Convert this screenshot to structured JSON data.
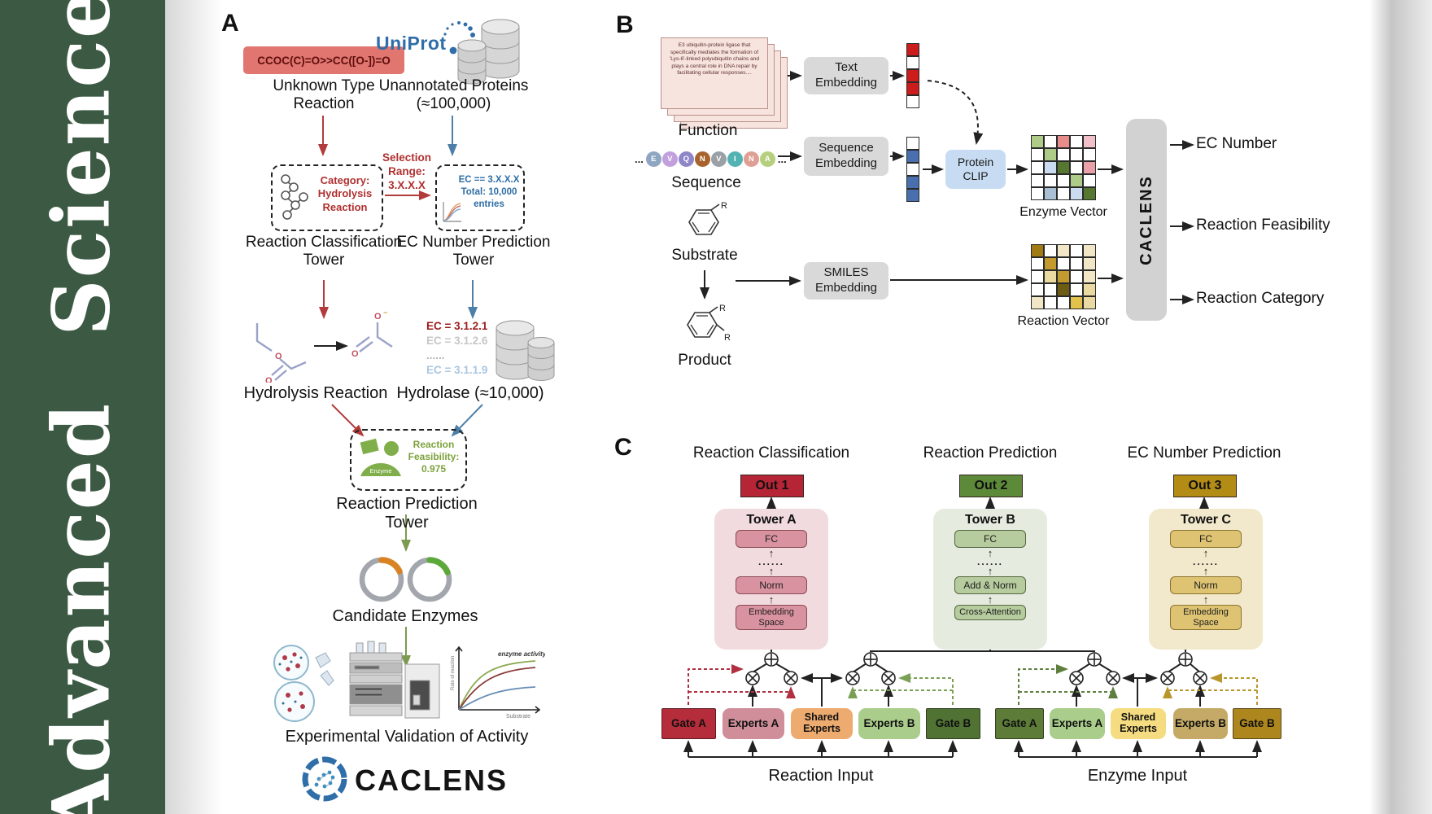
{
  "sidebar": {
    "title": "Advanced Science",
    "bg": "#3c5a43"
  },
  "panelA": {
    "label": "A",
    "smiles": "CCOC(C)=O>>CC([O-])=O",
    "unknown_reaction": "Unknown Type Reaction",
    "uniprot": "UniProt",
    "unannotated": "Unannotated Proteins (≈100,000)",
    "selection_lines": [
      "Selection",
      "Range:",
      "3.X.X.X"
    ],
    "category_lines": [
      "Category:",
      "Hydrolysis",
      "Reaction"
    ],
    "ec_box_lines": [
      "EC == 3.X.X.X",
      "Total: 10,000",
      "entries"
    ],
    "tower1": "Reaction Classification Tower",
    "tower2": "EC Number Prediction Tower",
    "hydrolysis_label": "Hydrolysis Reaction",
    "ec_list": [
      {
        "text": "EC = 3.1.2.1",
        "color": "#9c1b1b"
      },
      {
        "text": "EC = 3.1.2.6",
        "color": "#c6c6c6"
      },
      {
        "text": "......",
        "color": "#b5b5b5"
      },
      {
        "text": "EC = 3.1.1.9",
        "color": "#a9c6e0"
      }
    ],
    "hydrolase_label": "Hydrolase (≈10,000)",
    "enzyme_badge": "Enzyme",
    "feasibility_lines": [
      "Reaction",
      "Feasibility:",
      "0.975"
    ],
    "tower3": "Reaction Prediction Tower",
    "candidates": "Candidate Enzymes",
    "activity_plot": {
      "curve": "enzyme activity",
      "ylabel": "Rate of reaction",
      "xlabel": "Substrate"
    },
    "validation": "Experimental Validation of Activity",
    "logo": "CACLENS"
  },
  "panelB": {
    "label": "B",
    "function_text": "E3 ubiquitin-protein ligase that specifically mediates the formation of 'Lys-6'-linked polyubiquitin chains and plays a central role in DNA repair by facilitating cellular responses....",
    "function_label": "Function",
    "ellipsis": "...",
    "sequence": {
      "letters": [
        "E",
        "V",
        "Q",
        "N",
        "V",
        "I",
        "N",
        "A"
      ],
      "colors": [
        "#8fa6c2",
        "#c2a0dd",
        "#8f86c9",
        "#a8622b",
        "#9aa0a6",
        "#53b2b2",
        "#df9f94",
        "#b5cf7d"
      ]
    },
    "sequence_label": "Sequence",
    "substrate_label": "Substrate",
    "product_label": "Product",
    "r_label": "R",
    "text_embedding": "Text Embedding",
    "sequence_embedding": "Sequence Embedding",
    "smiles_embedding": "SMILES Embedding",
    "protein_clip": "Protein CLIP",
    "caclens": "CACLENS",
    "text_vector": [
      "#cc1c1c",
      "#ffffff",
      "#cc1c1c",
      "#cc1c1c",
      "#ffffff"
    ],
    "seq_vector": [
      "#ffffff",
      "#4a6fae",
      "#ffffff",
      "#4a6fae",
      "#4a6fae"
    ],
    "enzyme_matrix": [
      [
        "#aecb87",
        "#ffffff",
        "#e88b8b",
        "#ffffff",
        "#f2c0c8"
      ],
      [
        "#ffffff",
        "#aecb87",
        "#ffffff",
        "#ffffff",
        "#ffffff"
      ],
      [
        "#ffffff",
        "#ccdcf0",
        "#55772f",
        "#ffffff",
        "#e9a0a8"
      ],
      [
        "#ffffff",
        "#ffffff",
        "#ffffff",
        "#aecb87",
        "#ffffff"
      ],
      [
        "#ffffff",
        "#aabfd4",
        "#ffffff",
        "#ccdcf0",
        "#55772f"
      ]
    ],
    "enzyme_vector_label": "Enzyme Vector",
    "reaction_matrix": [
      [
        "#a07a12",
        "#ffffff",
        "#f1e7c6",
        "#ffffff",
        "#f1e7c6"
      ],
      [
        "#ffffff",
        "#c39a2e",
        "#ffffff",
        "#ffffff",
        "#f1e7c6"
      ],
      [
        "#ffffff",
        "#ead9a0",
        "#c39a2e",
        "#ffffff",
        "#f1e7c6"
      ],
      [
        "#ffffff",
        "#ffffff",
        "#6e5c12",
        "#ffffff",
        "#ead9a0"
      ],
      [
        "#f1e7c6",
        "#ffffff",
        "#ffffff",
        "#e2c24a",
        "#ead9a0"
      ]
    ],
    "reaction_vector_label": "Reaction Vector",
    "outputs": [
      "EC Number",
      "Reaction Feasibility",
      "Reaction Category"
    ]
  },
  "panelC": {
    "label": "C",
    "headings": [
      "Reaction Classification",
      "Reaction Prediction",
      "EC Number Prediction"
    ],
    "outs": [
      {
        "label": "Out 1",
        "bg": "#b52536"
      },
      {
        "label": "Out 2",
        "bg": "#5d8a38"
      },
      {
        "label": "Out 3",
        "bg": "#b38c15"
      }
    ],
    "towers": [
      {
        "title": "Tower A",
        "bg": "#f2dbdf",
        "layers": [
          "FC",
          "......",
          "Norm",
          "Embedding Space"
        ]
      },
      {
        "title": "Tower B",
        "bg": "#e5ecdf",
        "layers": [
          "FC",
          "......",
          "Add & Norm",
          "Cross-Attention"
        ]
      },
      {
        "title": "Tower C",
        "bg": "#f2e8cb",
        "layers": [
          "FC",
          "......",
          "Norm",
          "Embedding Space"
        ]
      }
    ],
    "groups": [
      {
        "input_label": "Reaction Input",
        "boxes": [
          {
            "label": "Gate A",
            "bg": "#b52c3a"
          },
          {
            "label": "Experts A",
            "bg": "#cf8e99"
          },
          {
            "label": "Shared Experts",
            "bg": "#eeab70"
          },
          {
            "label": "Experts B",
            "bg": "#abcd8c"
          },
          {
            "label": "Gate B",
            "bg": "#507232"
          }
        ]
      },
      {
        "input_label": "Enzyme Input",
        "boxes": [
          {
            "label": "Gate A",
            "bg": "#5d7c38"
          },
          {
            "label": "Experts A",
            "bg": "#abcd8c"
          },
          {
            "label": "Shared Experts",
            "bg": "#f5dc80"
          },
          {
            "label": "Experts B",
            "bg": "#c4aa66"
          },
          {
            "label": "Gate B",
            "bg": "#ad871e"
          }
        ]
      }
    ]
  }
}
